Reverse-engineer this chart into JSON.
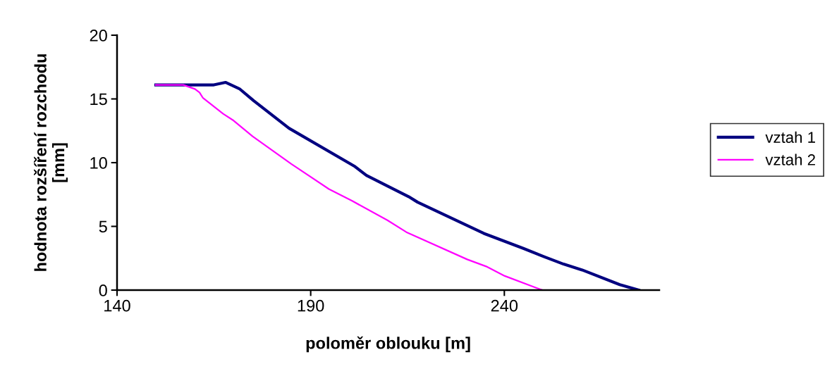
{
  "chart_data": {
    "type": "line",
    "xlabel": "poloměr oblouku [m]",
    "ylabel": "hodnota rozšíření rozchodu\n[mm]",
    "xlim": [
      140,
      280
    ],
    "xticks": [
      140,
      190,
      240
    ],
    "ylim": [
      0,
      20
    ],
    "yticks": [
      0,
      5,
      10,
      15,
      20
    ],
    "grid": false,
    "legend": "right",
    "marker": "none",
    "line_style": "solid",
    "series": [
      {
        "name": "vztah 1",
        "color": "#000080",
        "x": [
          150,
          165,
          168,
          171.6,
          175.3,
          184.4,
          201.2,
          204.4,
          209.8,
          215.3,
          217.6,
          234.7,
          244.9,
          250.4,
          255.3,
          260.1,
          269.8,
          274.7
        ],
        "values": [
          16.1,
          16.1,
          16.3,
          15.8,
          14.85,
          12.7,
          9.74,
          9.0,
          8.17,
          7.33,
          6.9,
          4.45,
          3.27,
          2.6,
          2.04,
          1.58,
          0.43,
          0
        ]
      },
      {
        "name": "vztah 2",
        "color": "#ff00ff",
        "x": [
          150,
          157.1,
          160.1,
          161.3,
          162.2,
          167.4,
          170.1,
          175,
          185,
          194.7,
          200.7,
          209.8,
          214.7,
          230.4,
          235.3,
          240.1,
          249.8
        ],
        "values": [
          16.1,
          16.1,
          15.78,
          15.5,
          15.07,
          13.83,
          13.3,
          12.07,
          9.9,
          7.93,
          7.0,
          5.48,
          4.55,
          2.41,
          1.86,
          1.11,
          0
        ]
      }
    ]
  }
}
